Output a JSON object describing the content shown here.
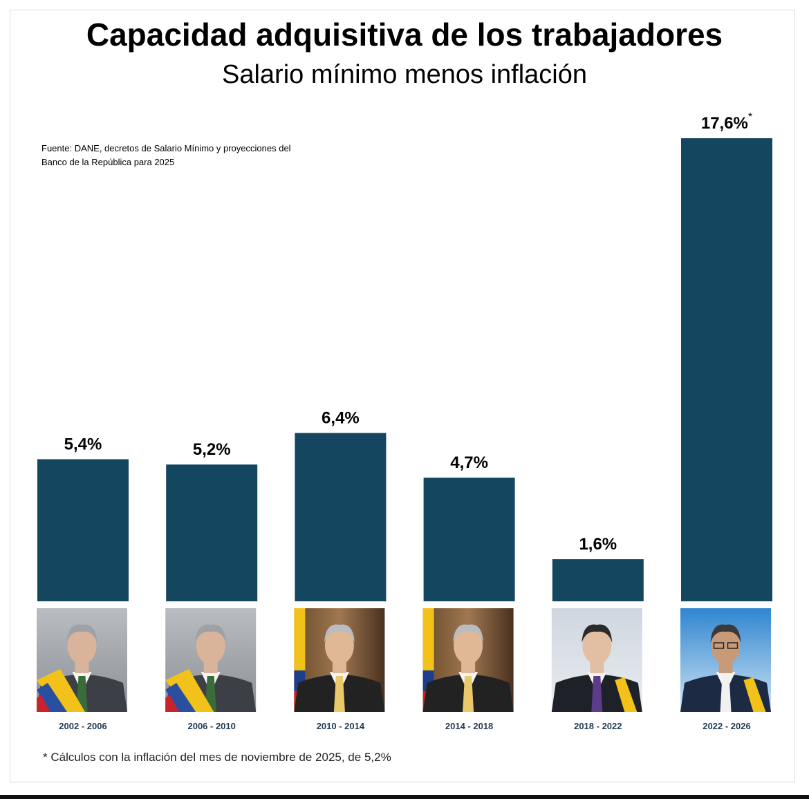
{
  "title": "Capacidad adquisitiva de los trabajadores",
  "subtitle": "Salario mínimo menos inflación",
  "source": "Fuente: DANE, decretos de Salario Mínimo y proyecciones del Banco de la República para 2025",
  "footnote": "* Cálculos con la inflación del mes de noviembre de 2025, de 5,2%",
  "colors": {
    "bar": "#154660"
  },
  "chart_data": {
    "type": "bar",
    "categories": [
      "2002 - 2006",
      "2006 - 2010",
      "2010 - 2014",
      "2014 - 2018",
      "2018 - 2022",
      "2022 - 2026"
    ],
    "values": [
      5.4,
      5.2,
      6.4,
      4.7,
      1.6,
      17.6
    ],
    "value_labels": [
      "5,4%",
      "5,2%",
      "6,4%",
      "4,7%",
      "1,6%",
      "17,6%"
    ],
    "annotations": [
      "",
      "",
      "",
      "",
      "",
      "*"
    ],
    "ylim": [
      0,
      17.6
    ],
    "grid": false,
    "legend": false
  }
}
